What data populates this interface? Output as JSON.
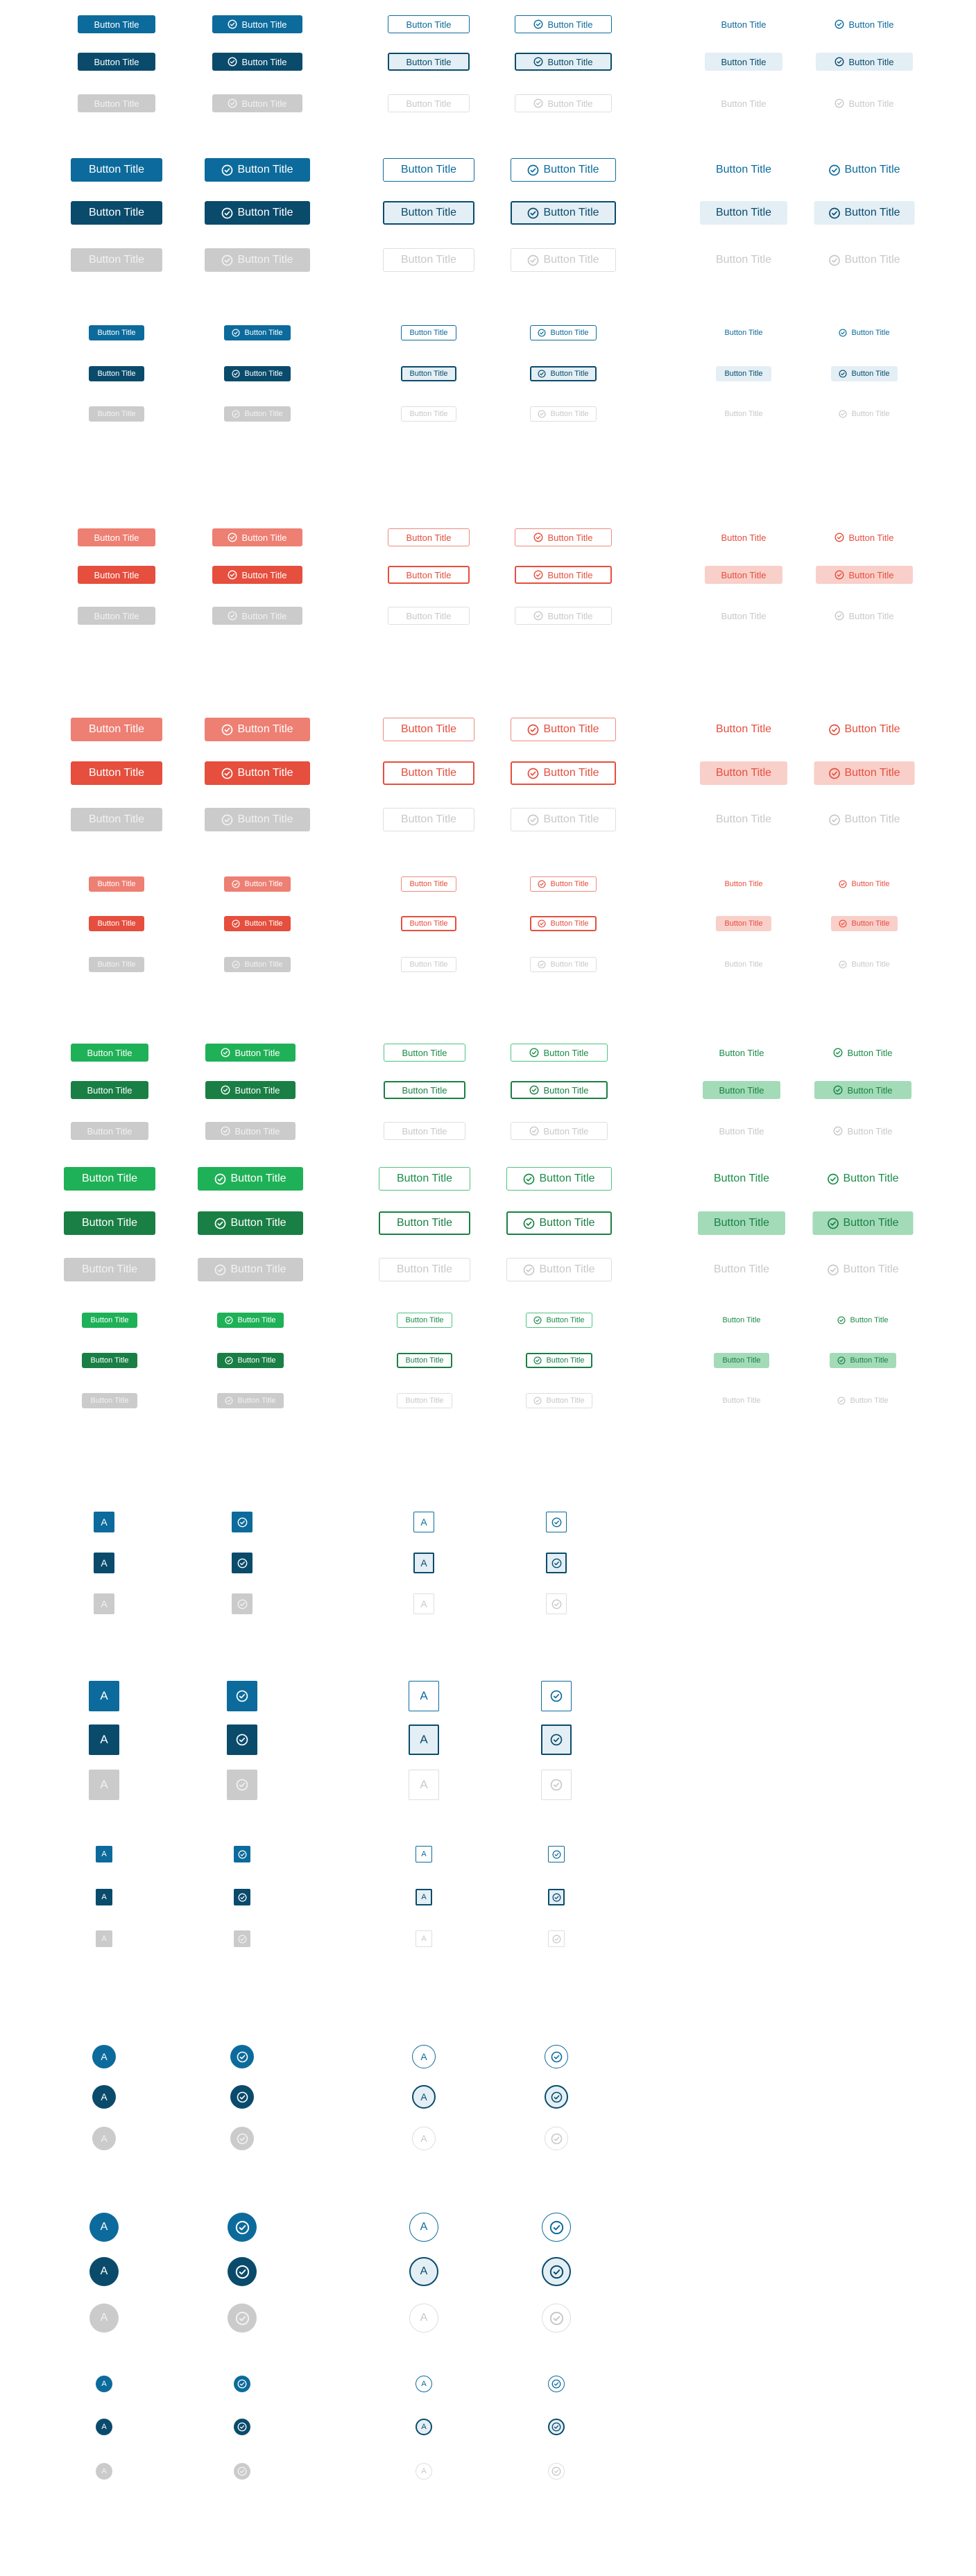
{
  "labels": {
    "title": "Button Title",
    "letter": "A"
  },
  "icons": {
    "check": "check-circle-icon"
  },
  "colors": {
    "blue": {
      "fill": "#0c6b9c",
      "pressed": "#0a4b6c",
      "light": "#e3eff5",
      "ink": "#0c6b9c",
      "ink_pressed": "#0a4b6c"
    },
    "red": {
      "fill": "#ee7f73",
      "pressed": "#e64e3d",
      "light": "#f9cfca",
      "ink": "#e64e3d",
      "ink_pressed": "#e64e3d",
      "outline": "#ee8a7e"
    },
    "green": {
      "fill": "#1fb157",
      "pressed": "#1a7f45",
      "light": "#a3dbb8",
      "ink": "#1a8d4a",
      "ink_pressed": "#1a7f45",
      "outline": "#4fc27f"
    },
    "disabled": {
      "fill": "#cbcbcb",
      "text": "#f2f2f2",
      "outline": "#dedede",
      "ink": "#c8c8c8"
    }
  },
  "states": [
    "default",
    "pressed",
    "disabled"
  ],
  "variants": [
    "filled",
    "filled-icon",
    "outline",
    "outline-icon",
    "ghost",
    "ghost-icon"
  ],
  "sizes": [
    "medium",
    "large",
    "small"
  ],
  "sections": [
    {
      "name": "text-buttons-blue",
      "theme": "blue",
      "kind": "text"
    },
    {
      "name": "text-buttons-red",
      "theme": "red",
      "kind": "text"
    },
    {
      "name": "text-buttons-green",
      "theme": "green",
      "kind": "text"
    },
    {
      "name": "square-icon-buttons",
      "theme": "blue",
      "kind": "square"
    },
    {
      "name": "round-icon-buttons",
      "theme": "blue",
      "kind": "round"
    }
  ]
}
